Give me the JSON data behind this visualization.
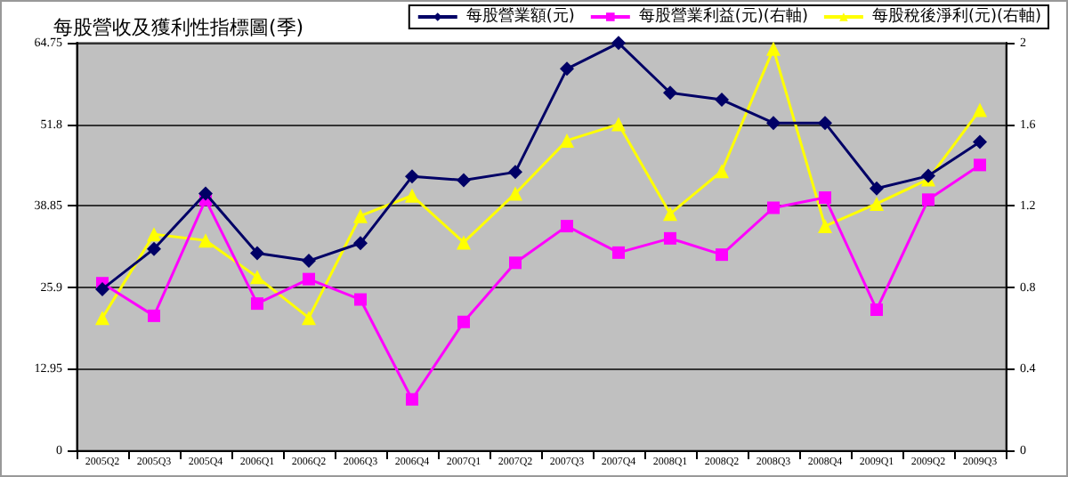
{
  "chart_data": {
    "type": "line",
    "title": "每股營收及獲利性指標圖(季)",
    "categories": [
      "2005Q2",
      "2005Q3",
      "2005Q4",
      "2006Q1",
      "2006Q2",
      "2006Q3",
      "2006Q4",
      "2007Q1",
      "2007Q2",
      "2007Q3",
      "2007Q4",
      "2008Q1",
      "2008Q2",
      "2008Q3",
      "2008Q4",
      "2009Q1",
      "2009Q2",
      "2009Q3"
    ],
    "series": [
      {
        "name": "每股營業額(元)",
        "color": "#000066",
        "marker": "diamond",
        "values": [
          25.6,
          32.0,
          40.8,
          31.3,
          30.1,
          32.9,
          43.5,
          42.9,
          44.2,
          60.6,
          64.7,
          56.8,
          55.7,
          52.0,
          52.0,
          41.6,
          43.6,
          49.0
        ]
      },
      {
        "name": "每股營業利益(元)(右軸)",
        "color": "#ff00ff",
        "marker": "square",
        "axis": "y2",
        "values": [
          0.82,
          0.66,
          1.23,
          0.72,
          0.84,
          0.74,
          0.25,
          0.63,
          0.92,
          1.1,
          0.97,
          1.04,
          0.96,
          1.19,
          1.24,
          0.69,
          1.23,
          1.4
        ]
      },
      {
        "name": "每股稅後淨利(元)(右軸)",
        "color": "#ffff00",
        "marker": "triangle",
        "axis": "y2",
        "values": [
          0.65,
          1.06,
          1.03,
          0.85,
          0.65,
          1.15,
          1.25,
          1.02,
          1.26,
          1.52,
          1.6,
          1.16,
          1.37,
          1.97,
          1.1,
          1.21,
          1.33,
          1.67
        ]
      }
    ],
    "ylim": [
      0,
      64.75
    ],
    "yticks": [
      0,
      12.95,
      25.9,
      38.85,
      51.8,
      64.75
    ],
    "y2lim": [
      0,
      2
    ],
    "y2ticks": [
      0,
      0.4,
      0.8,
      1.2,
      1.6,
      2
    ],
    "grid": "y",
    "legend": "top right",
    "line_style": "solid"
  }
}
